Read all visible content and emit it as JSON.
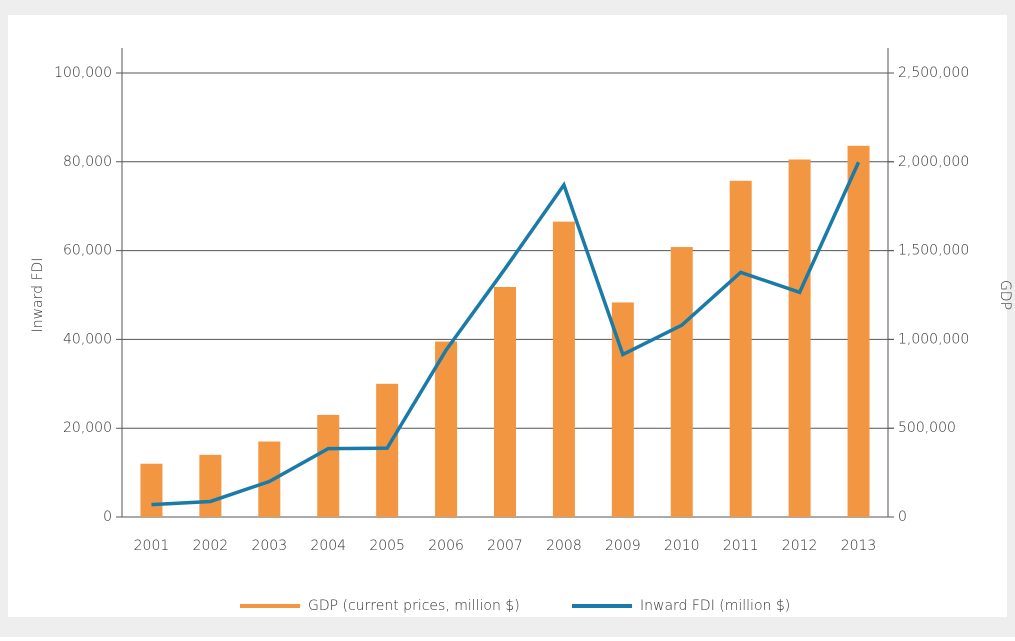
{
  "chart_data": {
    "type": "bar-line",
    "categories": [
      "2001",
      "2002",
      "2003",
      "2004",
      "2005",
      "2006",
      "2007",
      "2008",
      "2009",
      "2010",
      "2011",
      "2012",
      "2013"
    ],
    "series": [
      {
        "name": "GDP (current prices, million $)",
        "type": "bar",
        "axis": "y2",
        "color": "#f39642",
        "values": [
          300000,
          350000,
          425000,
          575000,
          750000,
          988000,
          1295000,
          1663000,
          1208000,
          1520000,
          1893000,
          2013000,
          2090000
        ]
      },
      {
        "name": "Inward FDI (million $)",
        "type": "line",
        "axis": "y",
        "color": "#1a7aa8",
        "values": [
          2800,
          3500,
          8000,
          15400,
          15500,
          37600,
          55900,
          74800,
          36600,
          43200,
          55100,
          50600,
          79900
        ]
      }
    ],
    "ylabel": "Inward FDI",
    "y2label": "GDP",
    "ylim": [
      0,
      100000
    ],
    "yticks": [
      0,
      {
        "value": 20000,
        "label": "20,000"
      },
      {
        "value": 40000,
        "label": "40,000"
      },
      {
        "value": 60000,
        "label": "60,000"
      },
      {
        "value": 80000,
        "label": "80,000"
      },
      {
        "value": 100000,
        "label": "100,000"
      }
    ],
    "y2lim": [
      0,
      2500000
    ],
    "y2ticks": [
      0,
      {
        "value": 500000,
        "label": "500,000"
      },
      {
        "value": 1000000,
        "label": "1,000,000"
      },
      {
        "value": 1500000,
        "label": "1,500,000"
      },
      {
        "value": 2000000,
        "label": "2,000,000"
      },
      {
        "value": 2500000,
        "label": "2,500,000"
      }
    ],
    "grid": true,
    "legend": "bottom"
  }
}
